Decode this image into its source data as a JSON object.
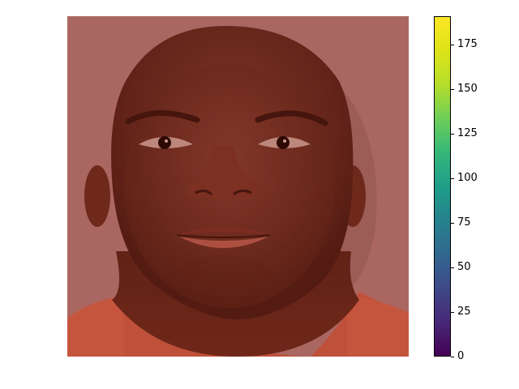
{
  "image": {
    "subject": "portrait-face",
    "overlay_color": "#8b1a10"
  },
  "colorbar": {
    "colormap": "viridis",
    "min": 0,
    "max": 191,
    "ticks": [
      "0",
      "25",
      "50",
      "75",
      "100",
      "125",
      "150",
      "175"
    ]
  }
}
